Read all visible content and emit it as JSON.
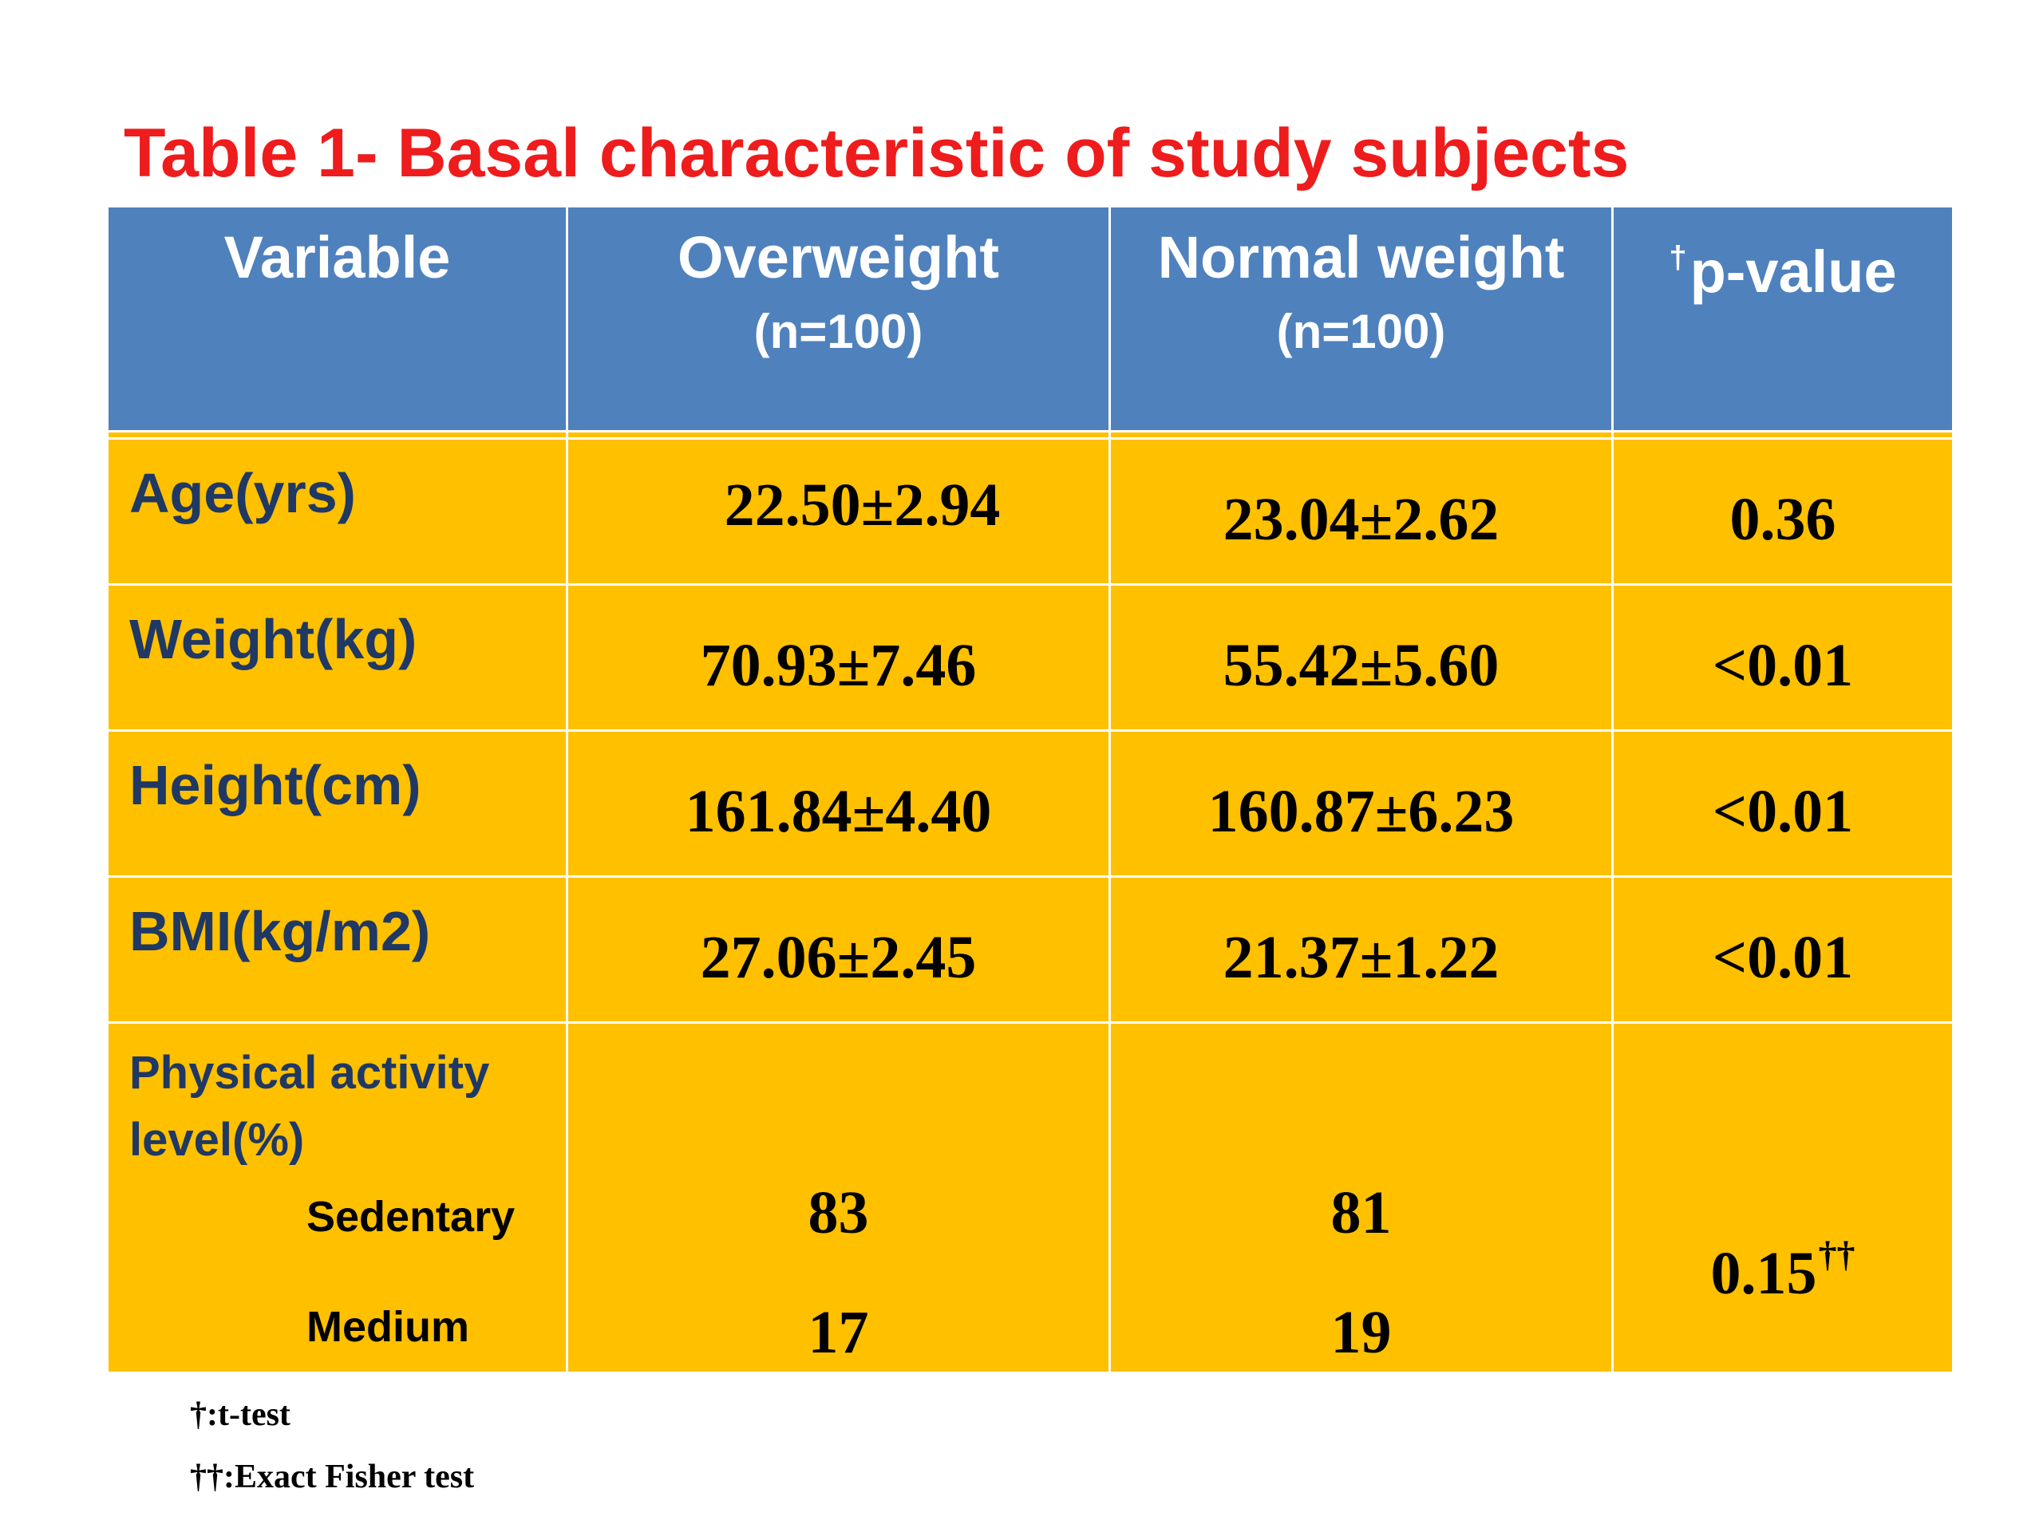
{
  "title": "Table 1- Basal characteristic of study subjects",
  "table": {
    "headers": [
      {
        "main": "Variable",
        "sub": ""
      },
      {
        "main": "Overweight",
        "sub": "(n=100)"
      },
      {
        "main": "Normal weight",
        "sub": "(n=100)"
      },
      {
        "main": "p-value",
        "sub": "",
        "marker": "†"
      }
    ],
    "rows": [
      {
        "variable": "Age(yrs)",
        "overweight": "22.50±2.94",
        "normal": "23.04±2.62",
        "p": "0.36"
      },
      {
        "variable": "Weight(kg)",
        "overweight": "70.93±7.46",
        "normal": "55.42±5.60",
        "p": "<0.01"
      },
      {
        "variable": "Height(cm)",
        "overweight": "161.84±4.40",
        "normal": "160.87±6.23",
        "p": "<0.01"
      },
      {
        "variable": "BMI(kg/m2)",
        "overweight": "27.06±2.45",
        "normal": "21.37±1.22",
        "p": "<0.01"
      }
    ],
    "physical_activity": {
      "label_line1": "Physical activity",
      "label_line2": "level(%)",
      "categories": [
        {
          "name": "Sedentary",
          "overweight": "83",
          "normal": "81"
        },
        {
          "name": "Medium",
          "overweight": "17",
          "normal": "19"
        }
      ],
      "p": "0.15",
      "p_marker": "††"
    }
  },
  "footnotes": [
    "†:t-test",
    "††:Exact Fisher test"
  ],
  "colors": {
    "title": "#ee1c1c",
    "header_bg": "#4f81bd",
    "body_bg": "#ffc000",
    "variable_text": "#1f3864"
  }
}
